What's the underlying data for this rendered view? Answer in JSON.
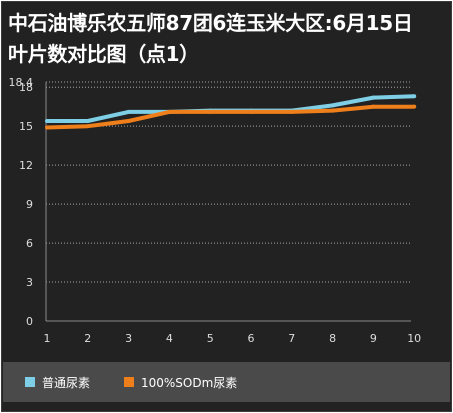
{
  "chart_data": {
    "type": "line",
    "title_lines": [
      "中石油博乐农五师87团6连玉米大区:6月15日",
      "叶片数对比图（点1）"
    ],
    "xlabel": "",
    "ylabel": "",
    "x": [
      1,
      2,
      3,
      4,
      5,
      6,
      7,
      8,
      9,
      10
    ],
    "ylim": [
      0,
      18.4
    ],
    "yticks": [
      0,
      3,
      6,
      9,
      12,
      15,
      18,
      18.4
    ],
    "grid": true,
    "legend_position": "bottom",
    "series": [
      {
        "name": "普通尿素",
        "color": "#7ecfe6",
        "values": [
          15.4,
          15.4,
          16.1,
          16.1,
          16.2,
          16.2,
          16.2,
          16.6,
          17.2,
          17.3
        ]
      },
      {
        "name": "100%SODm尿素",
        "color": "#ee7f1b",
        "values": [
          14.9,
          15.0,
          15.4,
          16.1,
          16.1,
          16.1,
          16.1,
          16.2,
          16.5,
          16.5
        ]
      }
    ]
  },
  "colors": {
    "background": "#222222",
    "legend_background": "#4a4a4a",
    "text": "#ffffff",
    "axis_text": "#dddddd",
    "gridline": "#bfbfbf"
  }
}
